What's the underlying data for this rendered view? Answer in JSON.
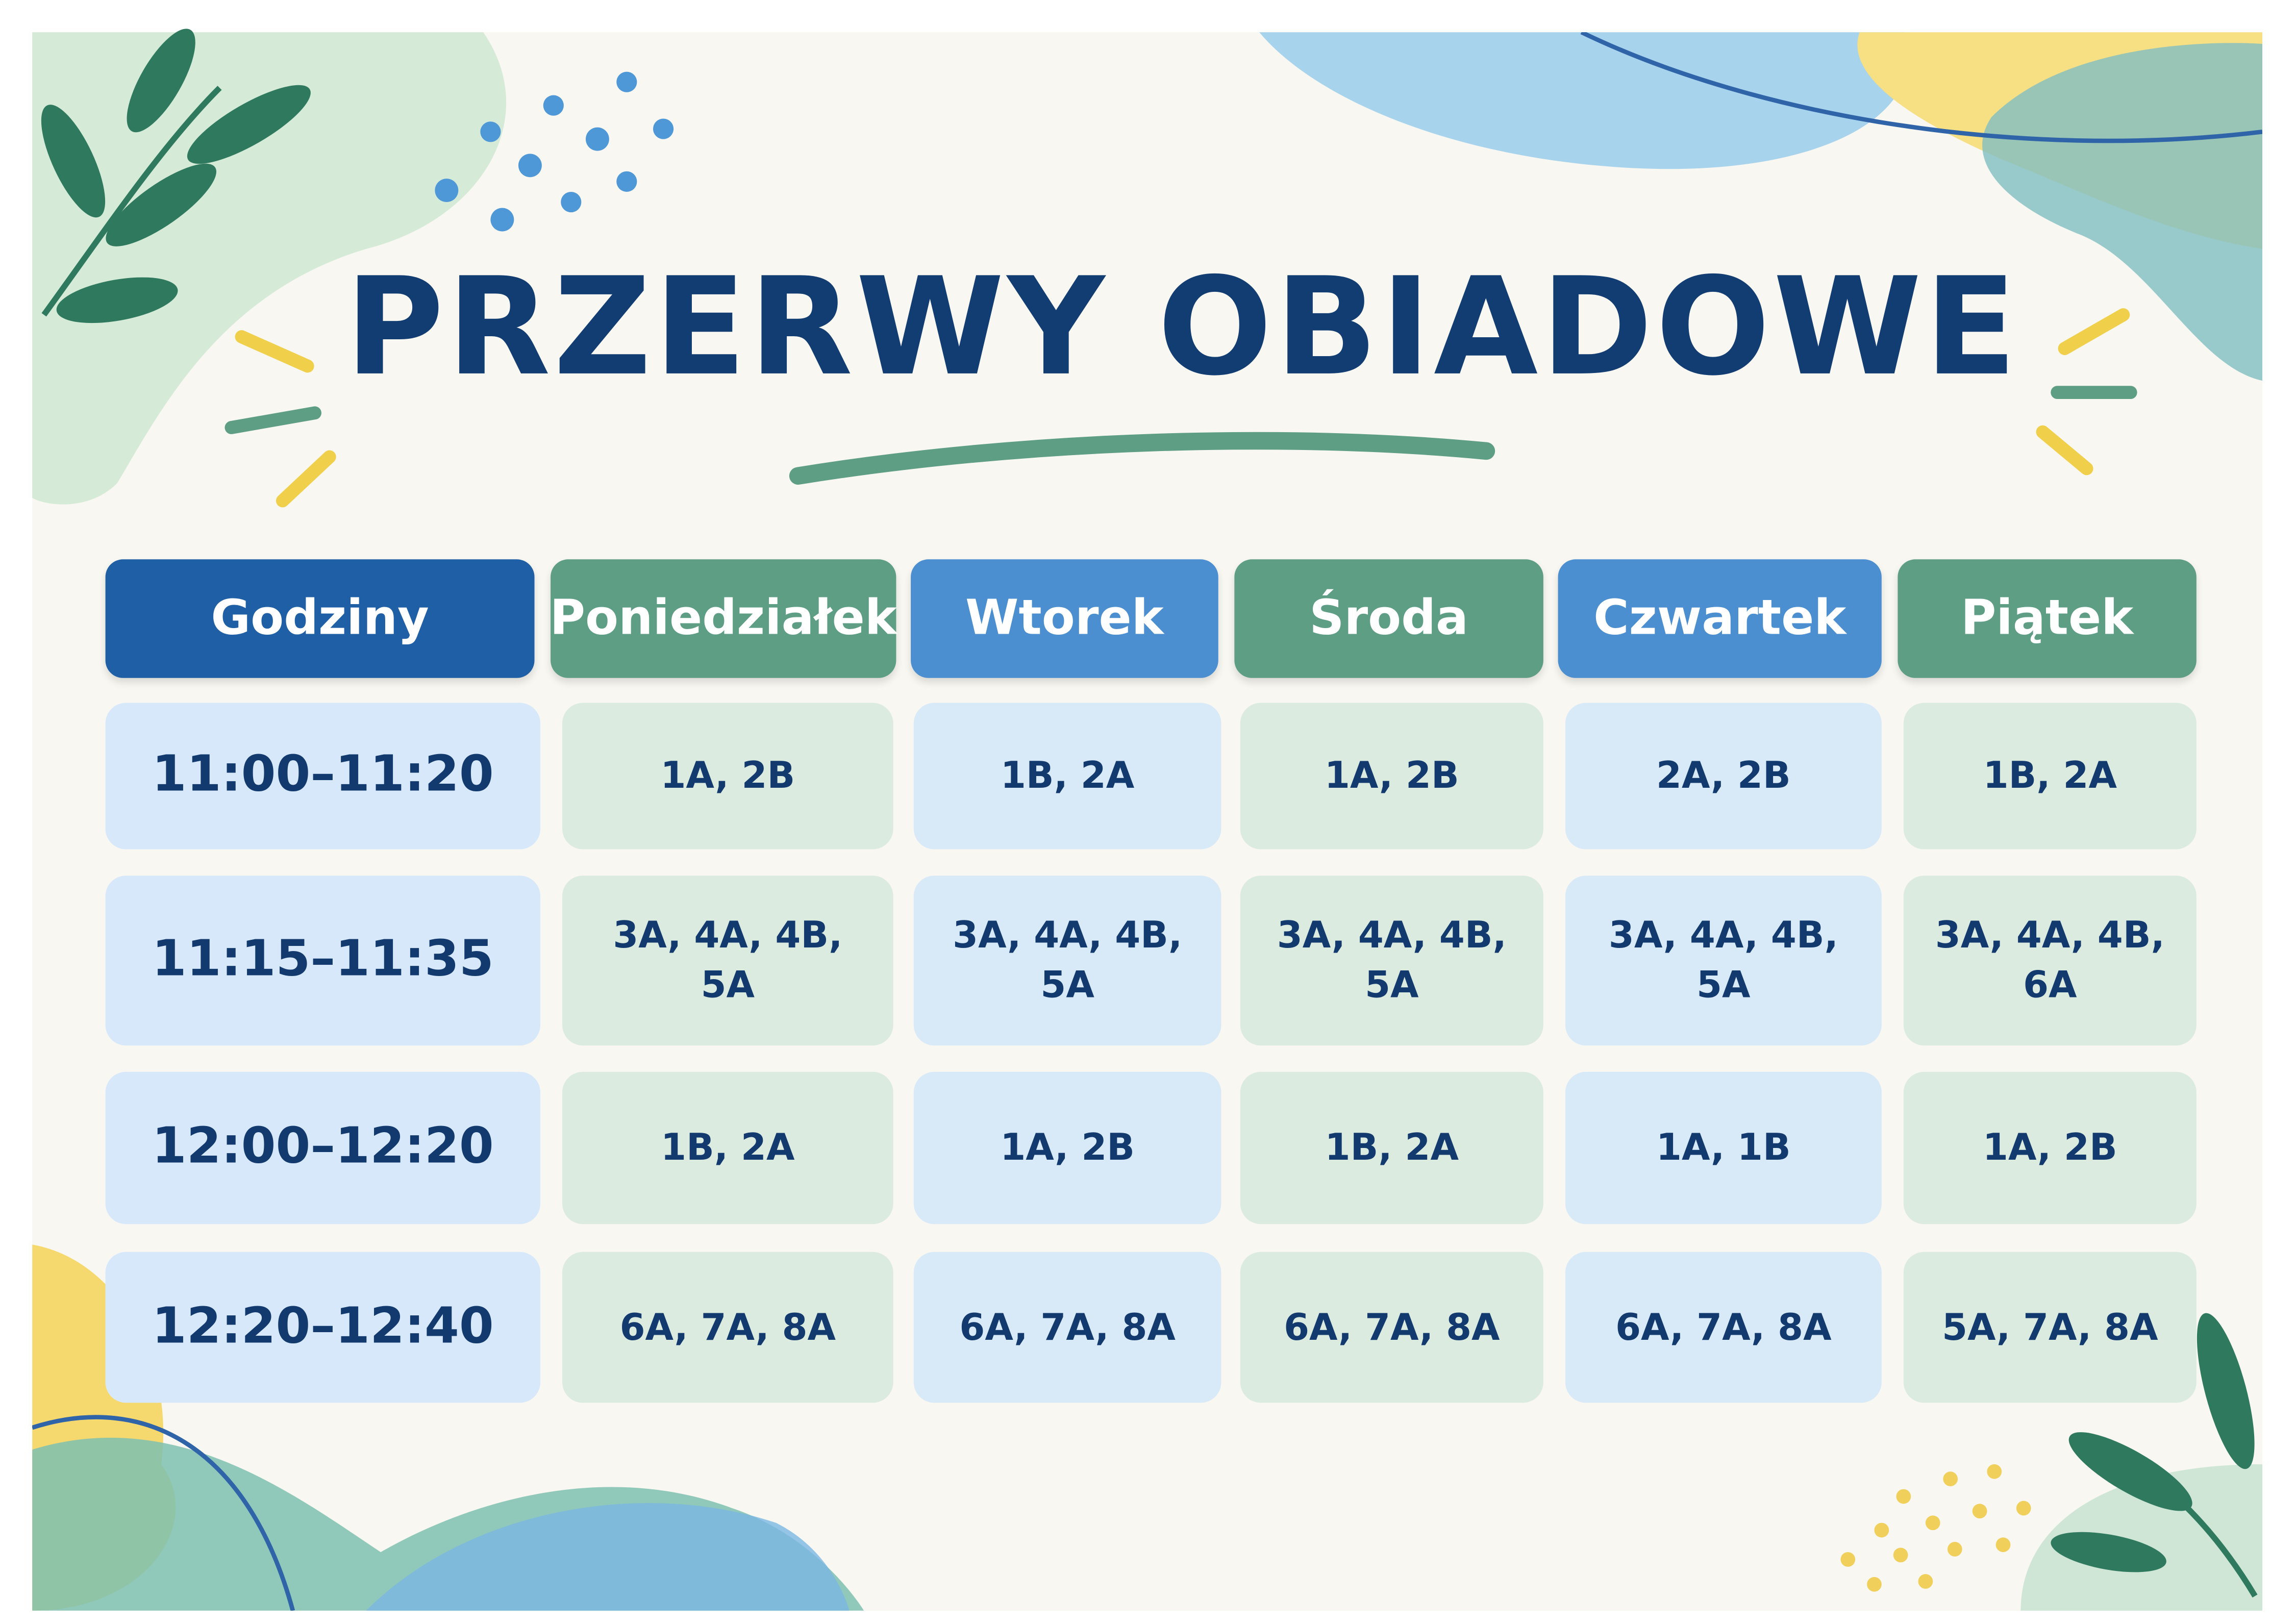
{
  "title": "PRZERWY OBIADOWE",
  "table": {
    "header": [
      "Godziny",
      "Poniedziałek",
      "Wtorek",
      "Środa",
      "Czwartek",
      "Piątek"
    ],
    "rows": [
      [
        "11:00–11:20",
        "1A, 2B",
        "1B, 2A",
        "1A, 2B",
        "2A, 2B",
        "1B, 2A"
      ],
      [
        "11:15–11:35",
        "3A, 4A, 4B, 5A",
        "3A, 4A, 4B, 5A",
        "3A, 4A, 4B, 5A",
        "3A, 4A, 4B, 5A",
        "3A, 4A, 4B, 6A"
      ],
      [
        "12:00–12:20",
        "1B, 2A",
        "1A, 2B",
        "1B, 2A",
        "1A, 1B",
        "1A, 2B"
      ],
      [
        "12:20–12:40",
        "6A, 7A, 8A",
        "6A, 7A, 8A",
        "6A, 7A, 8A",
        "6A, 7A, 8A",
        "5A, 7A, 8A"
      ]
    ]
  }
}
